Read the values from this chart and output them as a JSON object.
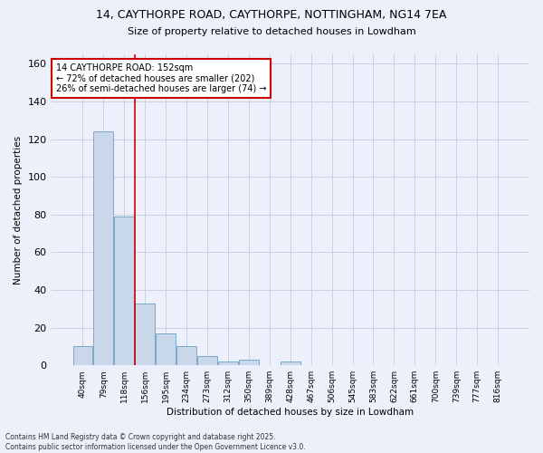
{
  "title1": "14, CAYTHORPE ROAD, CAYTHORPE, NOTTINGHAM, NG14 7EA",
  "title2": "Size of property relative to detached houses in Lowdham",
  "xlabel": "Distribution of detached houses by size in Lowdham",
  "ylabel": "Number of detached properties",
  "categories": [
    "40sqm",
    "79sqm",
    "118sqm",
    "156sqm",
    "195sqm",
    "234sqm",
    "273sqm",
    "312sqm",
    "350sqm",
    "389sqm",
    "428sqm",
    "467sqm",
    "506sqm",
    "545sqm",
    "583sqm",
    "622sqm",
    "661sqm",
    "700sqm",
    "739sqm",
    "777sqm",
    "816sqm"
  ],
  "values": [
    10,
    124,
    79,
    33,
    17,
    10,
    5,
    2,
    3,
    0,
    2,
    0,
    0,
    0,
    0,
    0,
    0,
    0,
    0,
    0,
    0
  ],
  "bar_color": "#c8d8ea",
  "bar_edge_color": "#7aaac8",
  "vline_x": 2.5,
  "vline_color": "#cc0000",
  "annotation_text": "14 CAYTHORPE ROAD: 152sqm\n← 72% of detached houses are smaller (202)\n26% of semi-detached houses are larger (74) →",
  "annotation_box_color": "#ffffff",
  "annotation_box_edge": "#cc0000",
  "ylim": [
    0,
    165
  ],
  "yticks": [
    0,
    20,
    40,
    60,
    80,
    100,
    120,
    140,
    160
  ],
  "footer": "Contains HM Land Registry data © Crown copyright and database right 2025.\nContains public sector information licensed under the Open Government Licence v3.0.",
  "bg_color": "#edf0fa",
  "grid_color": "#c8d0e0"
}
